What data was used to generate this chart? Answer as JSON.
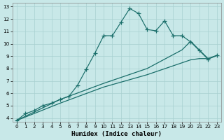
{
  "xlabel": "Humidex (Indice chaleur)",
  "bg_color": "#c8e8e8",
  "grid_color": "#a8d0d0",
  "line_color": "#1a6e6a",
  "xlim": [
    -0.5,
    23.5
  ],
  "ylim": [
    3.7,
    13.3
  ],
  "xticks": [
    0,
    1,
    2,
    3,
    4,
    5,
    6,
    7,
    8,
    9,
    10,
    11,
    12,
    13,
    14,
    15,
    16,
    17,
    18,
    19,
    20,
    21,
    22,
    23
  ],
  "yticks": [
    4,
    5,
    6,
    7,
    8,
    9,
    10,
    11,
    12,
    13
  ],
  "curve_x": [
    0,
    1,
    2,
    3,
    4,
    5,
    6,
    7,
    8,
    9,
    10,
    11,
    12,
    13,
    14,
    15,
    16,
    17,
    18,
    19,
    20,
    21,
    22,
    23
  ],
  "curve_y": [
    3.8,
    4.35,
    4.6,
    5.0,
    5.2,
    5.5,
    5.75,
    6.65,
    7.95,
    9.25,
    10.65,
    10.65,
    11.75,
    12.85,
    12.45,
    11.15,
    11.05,
    11.85,
    10.65,
    10.65,
    10.15,
    9.45,
    8.75,
    9.05
  ],
  "straight1_x": [
    0,
    5,
    10,
    15,
    20,
    21,
    22,
    23
  ],
  "straight1_y": [
    3.8,
    5.2,
    6.5,
    7.5,
    8.7,
    8.8,
    8.8,
    9.05
  ],
  "straight2_x": [
    0,
    5,
    10,
    15,
    19,
    20,
    21,
    22,
    23
  ],
  "straight2_y": [
    3.8,
    5.5,
    6.8,
    8.0,
    9.5,
    10.2,
    9.5,
    8.8,
    9.05
  ]
}
